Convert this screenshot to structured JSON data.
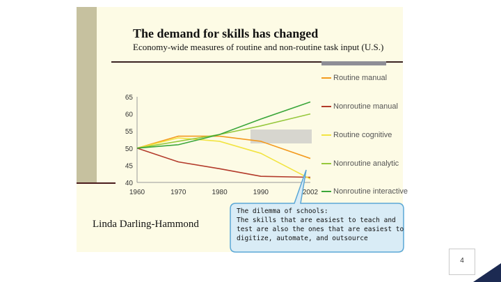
{
  "slide": {
    "title": "The demand for skills has changed",
    "subtitle": "Economy-wide measures of routine and non-routine task input (U.S.)",
    "author": "Linda Darling-Hammond",
    "page_number": "4"
  },
  "callout": {
    "lines": [
      "The dilemma of schools:",
      "The skills that are easiest to teach and",
      "test are also the ones that are easiest to",
      "digitize, automate, and outsource"
    ]
  },
  "colors": {
    "routine_manual": "#f39a1e",
    "nonroutine_manual": "#b33a2a",
    "routine_cognitive": "#f2e441",
    "nonroutine_analytic": "#96c83c",
    "nonroutine_interactive": "#3aa63a",
    "callout_fill": "#d9ecf6",
    "callout_border": "#5aa7d6",
    "page_corner": "#1c2a52"
  },
  "chart_data": {
    "type": "line",
    "x": [
      1960,
      1970,
      1980,
      1990,
      2002
    ],
    "x_tick_labels": [
      "1960",
      "1970",
      "1980",
      "1990",
      "2002"
    ],
    "ylim": [
      40,
      65
    ],
    "y_ticks": [
      40,
      45,
      50,
      55,
      60,
      65
    ],
    "grid": false,
    "legend_position": "right",
    "series": [
      {
        "name": "Routine manual",
        "color": "#f39a1e",
        "values": [
          50,
          53.5,
          53.5,
          52,
          47
        ]
      },
      {
        "name": "Nonroutine manual",
        "color": "#b33a2a",
        "values": [
          50,
          46,
          44,
          41.8,
          41.5
        ]
      },
      {
        "name": "Routine cognitive",
        "color": "#f2e441",
        "values": [
          50,
          53,
          52,
          48.5,
          41
        ]
      },
      {
        "name": "Nonroutine analytic",
        "color": "#96c83c",
        "values": [
          50,
          52,
          54,
          56.5,
          60
        ]
      },
      {
        "name": "Nonroutine interactive",
        "color": "#3aa63a",
        "values": [
          50,
          51,
          54,
          58.5,
          63.5
        ]
      }
    ]
  }
}
